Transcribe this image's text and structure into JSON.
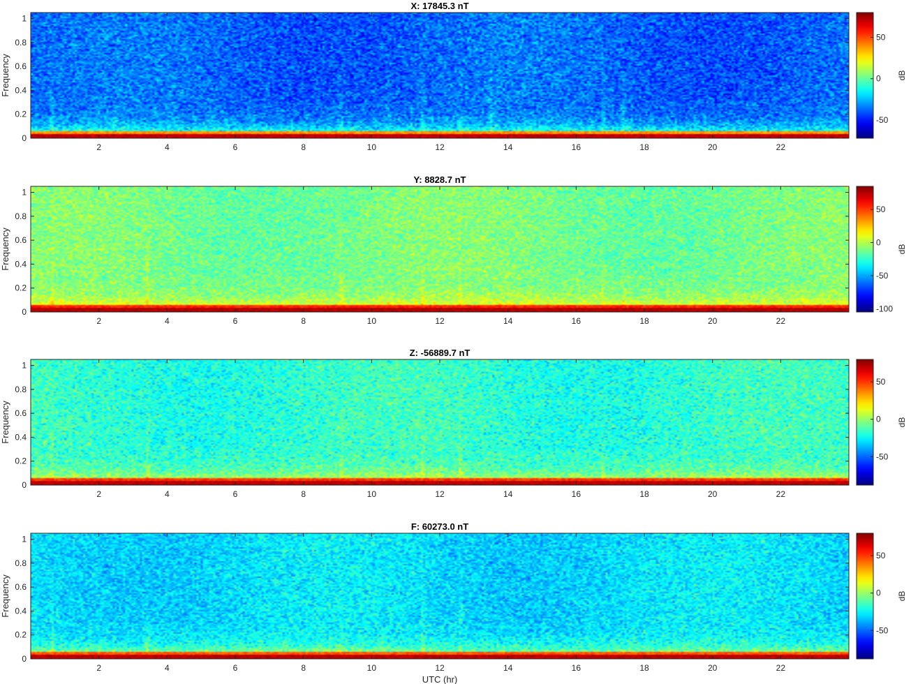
{
  "chart_data": [
    {
      "type": "heatmap",
      "title": "X: 17845.3 nT",
      "xlabel": "",
      "ylabel": "Frequency",
      "xlim": [
        0,
        24
      ],
      "ylim": [
        0,
        1.05
      ],
      "xticks": [
        2,
        4,
        6,
        8,
        10,
        12,
        14,
        16,
        18,
        20,
        22
      ],
      "yticks": [
        0,
        0.2,
        0.4,
        0.6,
        0.8,
        1
      ],
      "ytick_labels": [
        "0",
        "0.2",
        "0.4",
        "0.6",
        "0.8",
        "1"
      ],
      "colorbar": {
        "label": "dB",
        "range": [
          -72,
          80
        ],
        "ticks": [
          -50,
          0,
          50
        ],
        "tick_labels": [
          "-50",
          "0",
          "50"
        ],
        "colormap": "jet"
      },
      "background_db": -38,
      "low_freq_db": 20,
      "bottom_band_db": 75,
      "spikes_hr": [
        11.5,
        12.6,
        9.1,
        13.5,
        16.8,
        17.4,
        0.6
      ]
    },
    {
      "type": "heatmap",
      "title": "Y: 8828.7 nT",
      "xlabel": "",
      "ylabel": "Frequency",
      "xlim": [
        0,
        24
      ],
      "ylim": [
        0,
        1.05
      ],
      "xticks": [
        2,
        4,
        6,
        8,
        10,
        12,
        14,
        16,
        18,
        20,
        22
      ],
      "yticks": [
        0,
        0.2,
        0.4,
        0.6,
        0.8,
        1
      ],
      "ytick_labels": [
        "0",
        "0.2",
        "0.4",
        "0.6",
        "0.8",
        "1"
      ],
      "colorbar": {
        "label": "dB",
        "range": [
          -105,
          85
        ],
        "ticks": [
          -100,
          -50,
          0,
          50
        ],
        "tick_labels": [
          "-100",
          "-50",
          "0",
          "50"
        ],
        "colormap": "jet"
      },
      "background_db": -12,
      "low_freq_db": 35,
      "bottom_band_db": 80,
      "spikes_hr": [
        11.5,
        12.6,
        9.1,
        3.4,
        16.8,
        17.4,
        0.6
      ]
    },
    {
      "type": "heatmap",
      "title": "Z: -56889.7 nT",
      "xlabel": "",
      "ylabel": "Frequency",
      "xlim": [
        0,
        24
      ],
      "ylim": [
        0,
        1.05
      ],
      "xticks": [
        2,
        4,
        6,
        8,
        10,
        12,
        14,
        16,
        18,
        20,
        22
      ],
      "yticks": [
        0,
        0.2,
        0.4,
        0.6,
        0.8,
        1
      ],
      "ytick_labels": [
        "0",
        "0.2",
        "0.4",
        "0.6",
        "0.8",
        "1"
      ],
      "colorbar": {
        "label": "dB",
        "range": [
          -88,
          80
        ],
        "ticks": [
          -50,
          0,
          50
        ],
        "tick_labels": [
          "-50",
          "0",
          "50"
        ],
        "colormap": "jet"
      },
      "background_db": -18,
      "low_freq_db": 30,
      "bottom_band_db": 75,
      "spikes_hr": [
        11.5,
        12.6,
        9.1,
        3.4,
        16.8,
        0.6
      ]
    },
    {
      "type": "heatmap",
      "title": "F: 60273.0 nT",
      "xlabel": "UTC (hr)",
      "ylabel": "Frequency",
      "xlim": [
        0,
        24
      ],
      "ylim": [
        0,
        1.05
      ],
      "xticks": [
        2,
        4,
        6,
        8,
        10,
        12,
        14,
        16,
        18,
        20,
        22
      ],
      "yticks": [
        0,
        0.2,
        0.4,
        0.6,
        0.8,
        1
      ],
      "ytick_labels": [
        "0",
        "0.2",
        "0.4",
        "0.6",
        "0.8",
        "1"
      ],
      "colorbar": {
        "label": "dB",
        "range": [
          -88,
          80
        ],
        "ticks": [
          -50,
          0,
          50
        ],
        "tick_labels": [
          "-50",
          "0",
          "50"
        ],
        "colormap": "jet"
      },
      "background_db": -30,
      "low_freq_db": 25,
      "bottom_band_db": 75,
      "spikes_hr": [
        11.5,
        12.6,
        9.1,
        3.4,
        0.6
      ]
    }
  ]
}
